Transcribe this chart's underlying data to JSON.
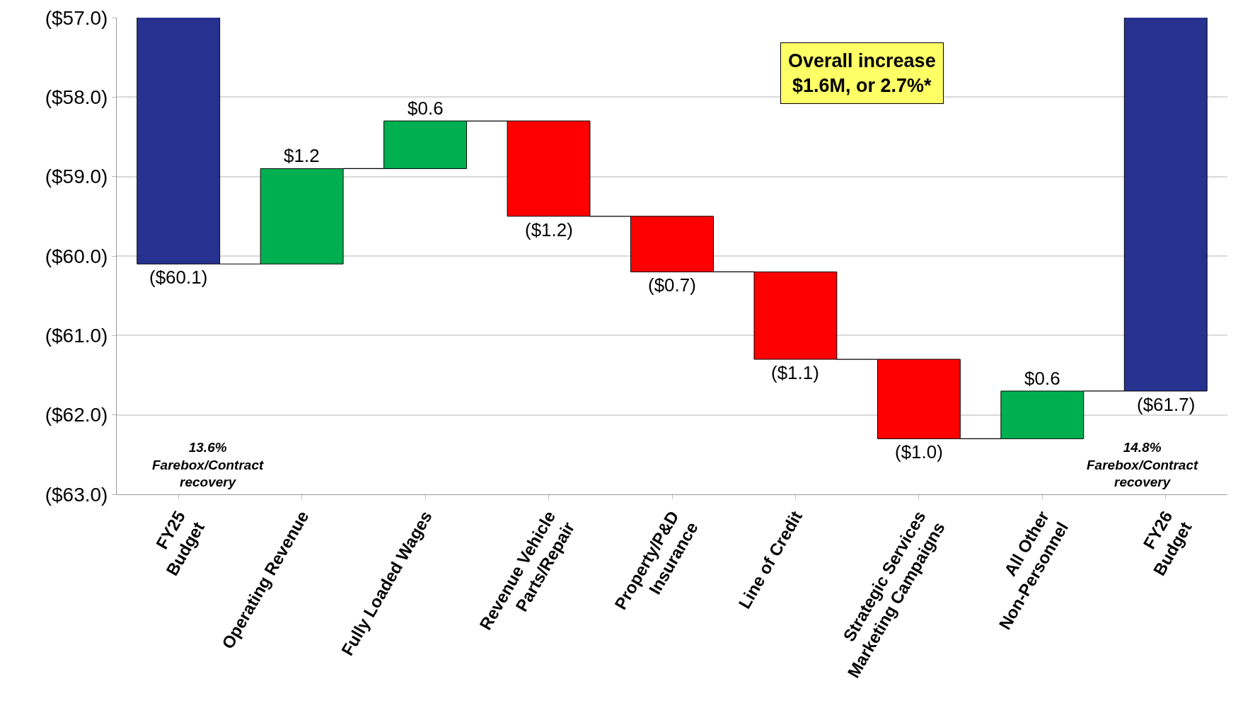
{
  "chart_data": {
    "type": "bar",
    "categories": [
      "FY25\nBudget",
      "Operating Revenue",
      "Fully Loaded Wages",
      "Revenue Vehicle\nParts/Repair",
      "Property/P&D\nInsurance",
      "Line of Credit",
      "Strategic Services\nMarketing Campaigns",
      "All Other\nNon-Personnel",
      "FY26\nBudget"
    ],
    "values": [
      -60.1,
      1.2,
      0.6,
      -1.2,
      -0.7,
      -1.1,
      -1.0,
      0.6,
      -61.7
    ],
    "base": [
      0,
      -60.1,
      -58.9,
      -58.3,
      -59.5,
      -60.2,
      -61.3,
      -62.3,
      0
    ],
    "colors": [
      "#27318f",
      "#00b050",
      "#00b050",
      "#ff0000",
      "#ff0000",
      "#ff0000",
      "#ff0000",
      "#00b050",
      "#27318f"
    ],
    "value_labels": [
      "($60.1)",
      "$1.2",
      "$0.6",
      "($1.2)",
      "($0.7)",
      "($1.1)",
      "($1.0)",
      "$0.6",
      "($61.7)"
    ],
    "ylim": [
      -63,
      -57
    ],
    "yticks": [
      {
        "value": -63,
        "label": "($63.0)"
      },
      {
        "value": -62,
        "label": "($62.0)"
      },
      {
        "value": -61,
        "label": "($61.0)"
      },
      {
        "value": -60,
        "label": "($60.0)"
      },
      {
        "value": -59,
        "label": "($59.0)"
      },
      {
        "value": -58,
        "label": "($58.0)"
      },
      {
        "value": -57,
        "label": "($57.0)"
      }
    ],
    "grid": "y",
    "annotations": [
      "Overall increase\n$1.6M, or 2.7%*",
      "13.6%\nFarebox/Contract\nrecovery",
      "14.8%\nFarebox/Contract\nrecovery"
    ]
  }
}
